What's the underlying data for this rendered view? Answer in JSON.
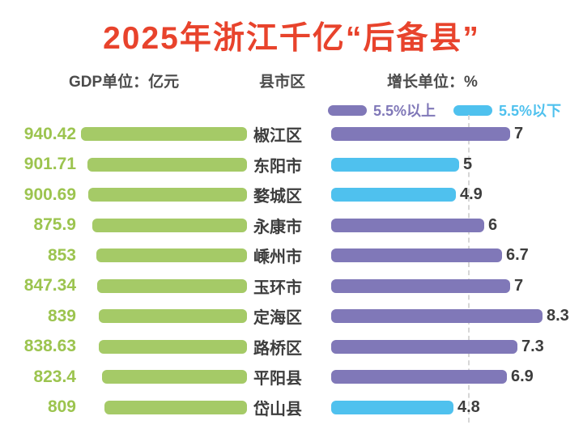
{
  "title": "2025年浙江千亿“后备县”",
  "subtitle": {
    "gdp_unit": "GDP单位：亿元",
    "county": "县市区",
    "growth_unit": "增长单位：%"
  },
  "legend": [
    {
      "label": "5.5%以上",
      "color": "#8078b8"
    },
    {
      "label": "5.5%以下",
      "color": "#4fc1ee"
    }
  ],
  "colors": {
    "title_red": "#e8432c",
    "green_bar": "#a5ca67",
    "green_text": "#9cc44f",
    "purple": "#8078b8",
    "blue": "#4fc1ee",
    "text_dark": "#3d3d3d",
    "gridline": "#d6d6d6"
  },
  "chart_data": {
    "type": "bar",
    "orientation": "horizontal-tornado",
    "title": "2025年浙江千亿“后备县”",
    "xlabel_left": "GDP单位：亿元",
    "xlabel_right": "增长单位：%",
    "center_label": "县市区",
    "legend_position": "top-right",
    "grid": "dashed vertical reference line at growth threshold",
    "growth_threshold": 5.5,
    "categories": [
      "椒江区",
      "东阳市",
      "婺城区",
      "永康市",
      "嵊州市",
      "玉环市",
      "定海区",
      "路桥区",
      "平阳县",
      "岱山县"
    ],
    "series": [
      {
        "name": "GDP(亿元)",
        "values": [
          940.42,
          901.71,
          900.69,
          875.9,
          853,
          847.34,
          839,
          838.63,
          823.4,
          809
        ]
      },
      {
        "name": "增长(%)",
        "values": [
          7,
          5,
          4.9,
          6,
          6.7,
          7,
          8.3,
          7.3,
          6.9,
          4.8
        ]
      }
    ],
    "rows": [
      {
        "gdp": "940.42",
        "name": "椒江区",
        "growth": "7"
      },
      {
        "gdp": "901.71",
        "name": "东阳市",
        "growth": "5"
      },
      {
        "gdp": "900.69",
        "name": "婺城区",
        "growth": "4.9"
      },
      {
        "gdp": "875.9",
        "name": "永康市",
        "growth": "6"
      },
      {
        "gdp": "853",
        "name": "嵊州市",
        "growth": "6.7"
      },
      {
        "gdp": "847.34",
        "name": "玉环市",
        "growth": "7"
      },
      {
        "gdp": "839",
        "name": "定海区",
        "growth": "8.3"
      },
      {
        "gdp": "838.63",
        "name": "路桥区",
        "growth": "7.3"
      },
      {
        "gdp": "823.4",
        "name": "平阳县",
        "growth": "6.9"
      },
      {
        "gdp": "809",
        "name": "岱山县",
        "growth": "4.8"
      }
    ]
  }
}
